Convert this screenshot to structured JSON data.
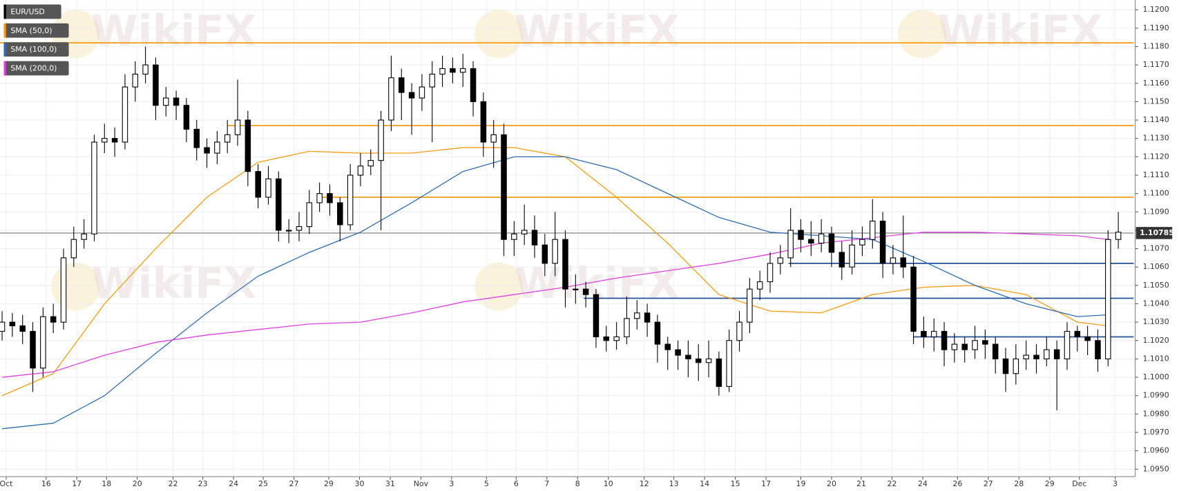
{
  "chart_data": {
    "type": "candlestick",
    "watermark": "WikiFX",
    "xlim": [
      -0.5,
      110.5
    ],
    "ylim": [
      1.095,
      1.1205
    ],
    "grid": true,
    "xticks": [
      {
        "value": 0.4,
        "label": "Oct"
      },
      {
        "value": 4.3,
        "label": "16"
      },
      {
        "value": 7.3,
        "label": "17"
      },
      {
        "value": 10.2,
        "label": "18"
      },
      {
        "value": 13.2,
        "label": "20"
      },
      {
        "value": 16.7,
        "label": "22"
      },
      {
        "value": 19.6,
        "label": "23"
      },
      {
        "value": 22.6,
        "label": "24"
      },
      {
        "value": 25.5,
        "label": "25"
      },
      {
        "value": 28.5,
        "label": "27"
      },
      {
        "value": 31.9,
        "label": "29"
      },
      {
        "value": 34.9,
        "label": "30"
      },
      {
        "value": 37.9,
        "label": "31"
      },
      {
        "value": 40.9,
        "label": "Nov"
      },
      {
        "value": 43.9,
        "label": "3"
      },
      {
        "value": 47.3,
        "label": "5"
      },
      {
        "value": 50.2,
        "label": "6"
      },
      {
        "value": 53.2,
        "label": "7"
      },
      {
        "value": 56.2,
        "label": "8"
      },
      {
        "value": 59.2,
        "label": "10"
      },
      {
        "value": 62.7,
        "label": "12"
      },
      {
        "value": 65.6,
        "label": "13"
      },
      {
        "value": 68.6,
        "label": "14"
      },
      {
        "value": 71.6,
        "label": "15"
      },
      {
        "value": 74.6,
        "label": "17"
      },
      {
        "value": 78.0,
        "label": "19"
      },
      {
        "value": 81.0,
        "label": "20"
      },
      {
        "value": 83.9,
        "label": "21"
      },
      {
        "value": 86.9,
        "label": "22"
      },
      {
        "value": 89.9,
        "label": "24"
      },
      {
        "value": 93.3,
        "label": "26"
      },
      {
        "value": 96.3,
        "label": "27"
      },
      {
        "value": 99.3,
        "label": "28"
      },
      {
        "value": 102.3,
        "label": "29"
      },
      {
        "value": 105.2,
        "label": "Dec"
      },
      {
        "value": 108.7,
        "label": "3"
      }
    ],
    "yticks": [
      {
        "value": 1.12,
        "label": "1.1200"
      },
      {
        "value": 1.119,
        "label": "1.1190"
      },
      {
        "value": 1.118,
        "label": "1.1180"
      },
      {
        "value": 1.117,
        "label": "1.1170"
      },
      {
        "value": 1.116,
        "label": "1.1160"
      },
      {
        "value": 1.115,
        "label": "1.1150"
      },
      {
        "value": 1.114,
        "label": "1.1140"
      },
      {
        "value": 1.113,
        "label": "1.1130"
      },
      {
        "value": 1.112,
        "label": "1.1120"
      },
      {
        "value": 1.111,
        "label": "1.1110"
      },
      {
        "value": 1.11,
        "label": "1.1100"
      },
      {
        "value": 1.109,
        "label": "1.1090"
      },
      {
        "value": 1.108,
        "label": "1.1080"
      },
      {
        "value": 1.107,
        "label": "1.1070"
      },
      {
        "value": 1.106,
        "label": "1.1060"
      },
      {
        "value": 1.105,
        "label": "1.1050"
      },
      {
        "value": 1.104,
        "label": "1.1040"
      },
      {
        "value": 1.103,
        "label": "1.1030"
      },
      {
        "value": 1.102,
        "label": "1.1020"
      },
      {
        "value": 1.101,
        "label": "1.1010"
      },
      {
        "value": 1.1,
        "label": "1.1000"
      },
      {
        "value": 1.099,
        "label": "1.0990"
      },
      {
        "value": 1.098,
        "label": "1.0980"
      },
      {
        "value": 1.097,
        "label": "1.0970"
      },
      {
        "value": 1.096,
        "label": "1.0960"
      },
      {
        "value": 1.095,
        "label": "1.0950"
      }
    ],
    "candles": {
      "name": "EUR/USD",
      "up_color": "#ffffff",
      "down_color": "#000000",
      "x": [
        0,
        1,
        2,
        3,
        4,
        5,
        6,
        7,
        8,
        9,
        10,
        11,
        12,
        13,
        14,
        15,
        16,
        17,
        18,
        19,
        20,
        21,
        22,
        23,
        24,
        25,
        26,
        27,
        28,
        29,
        30,
        31,
        32,
        33,
        34,
        35,
        36,
        37,
        38,
        39,
        40,
        41,
        42,
        43,
        44,
        45,
        46,
        47,
        48,
        49,
        50,
        51,
        52,
        53,
        54,
        55,
        56,
        57,
        58,
        59,
        60,
        61,
        62,
        63,
        64,
        65,
        66,
        67,
        68,
        69,
        70,
        71,
        72,
        73,
        74,
        75,
        76,
        77,
        78,
        79,
        80,
        81,
        82,
        83,
        84,
        85,
        86,
        87,
        88,
        89,
        90,
        91,
        92,
        93,
        94,
        95,
        96,
        97,
        98,
        99,
        100,
        101,
        102,
        103,
        104,
        105,
        106,
        107,
        108,
        109
      ],
      "open": [
        1.1025,
        1.103,
        1.1028,
        1.1025,
        1.1005,
        1.1033,
        1.103,
        1.1065,
        1.1075,
        1.1078,
        1.1128,
        1.113,
        1.1128,
        1.1158,
        1.1165,
        1.117,
        1.1148,
        1.1152,
        1.1148,
        1.1135,
        1.1125,
        1.1122,
        1.1128,
        1.1132,
        1.114,
        1.1112,
        1.1098,
        1.1108,
        1.108,
        1.108,
        1.1082,
        1.1095,
        1.11,
        1.1095,
        1.1083,
        1.111,
        1.1115,
        1.1118,
        1.114,
        1.1163,
        1.1155,
        1.1152,
        1.1158,
        1.1165,
        1.1168,
        1.1166,
        1.1168,
        1.115,
        1.1128,
        1.1132,
        1.1075,
        1.1078,
        1.108,
        1.1072,
        1.1062,
        1.1075,
        1.1048,
        1.1048,
        1.1045,
        1.1022,
        1.102,
        1.1022,
        1.1032,
        1.1035,
        1.103,
        1.1018,
        1.1015,
        1.1012,
        1.101,
        1.1008,
        1.101,
        1.0995,
        1.102,
        1.103,
        1.1048,
        1.1052,
        1.1062,
        1.1065,
        1.108,
        1.1075,
        1.1073,
        1.1078,
        1.1068,
        1.106,
        1.1072,
        1.1075,
        1.1085,
        1.1062,
        1.1065,
        1.106,
        1.1025,
        1.1022,
        1.1025,
        1.1015,
        1.1018,
        1.1015,
        1.102,
        1.1018,
        1.101,
        1.1002,
        1.101,
        1.1012,
        1.101,
        1.1015,
        1.101,
        1.1025,
        1.1022,
        1.102,
        1.101,
        1.1075
      ],
      "high": [
        1.1036,
        1.1035,
        1.1034,
        1.103,
        1.1038,
        1.104,
        1.107,
        1.1082,
        1.1086,
        1.1132,
        1.1138,
        1.1136,
        1.1165,
        1.1172,
        1.118,
        1.1174,
        1.1158,
        1.1156,
        1.1152,
        1.114,
        1.113,
        1.1134,
        1.114,
        1.1162,
        1.1145,
        1.1116,
        1.1115,
        1.1112,
        1.1086,
        1.109,
        1.1102,
        1.1106,
        1.1105,
        1.1098,
        1.1116,
        1.1122,
        1.1124,
        1.1145,
        1.1175,
        1.1168,
        1.116,
        1.1165,
        1.1172,
        1.1175,
        1.1174,
        1.1176,
        1.1172,
        1.1155,
        1.114,
        1.1138,
        1.1085,
        1.1094,
        1.1088,
        1.1078,
        1.109,
        1.108,
        1.1056,
        1.1052,
        1.1048,
        1.1028,
        1.103,
        1.1044,
        1.1042,
        1.104,
        1.1034,
        1.1022,
        1.102,
        1.102,
        1.1018,
        1.102,
        1.1014,
        1.1026,
        1.1036,
        1.1054,
        1.1058,
        1.1068,
        1.1072,
        1.1092,
        1.1086,
        1.1085,
        1.1086,
        1.1082,
        1.1074,
        1.108,
        1.1082,
        1.1097,
        1.109,
        1.1072,
        1.1088,
        1.1066,
        1.1033,
        1.1032,
        1.103,
        1.1024,
        1.1022,
        1.1028,
        1.1026,
        1.1022,
        1.1016,
        1.1018,
        1.102,
        1.1018,
        1.1022,
        1.102,
        1.103,
        1.1028,
        1.1028,
        1.1026,
        1.108,
        1.109
      ],
      "low": [
        1.102,
        1.1022,
        1.1018,
        1.0992,
        1.1,
        1.1024,
        1.1026,
        1.106,
        1.107,
        1.1074,
        1.1122,
        1.112,
        1.1124,
        1.115,
        1.116,
        1.114,
        1.1142,
        1.114,
        1.1128,
        1.1118,
        1.1114,
        1.1116,
        1.1122,
        1.1126,
        1.1104,
        1.1092,
        1.1094,
        1.1074,
        1.1073,
        1.1074,
        1.1078,
        1.109,
        1.1088,
        1.1074,
        1.108,
        1.1104,
        1.111,
        1.108,
        1.1134,
        1.114,
        1.1132,
        1.1145,
        1.1128,
        1.1158,
        1.116,
        1.1158,
        1.1142,
        1.112,
        1.1114,
        1.1066,
        1.1066,
        1.1072,
        1.1065,
        1.1055,
        1.1055,
        1.1038,
        1.104,
        1.1038,
        1.1016,
        1.1014,
        1.1015,
        1.1018,
        1.1026,
        1.1022,
        1.1008,
        1.1004,
        1.1004,
        1.1,
        1.0998,
        1.1,
        1.099,
        1.0992,
        1.1014,
        1.1024,
        1.1042,
        1.1046,
        1.1056,
        1.106,
        1.1068,
        1.1066,
        1.1068,
        1.106,
        1.1053,
        1.1056,
        1.1066,
        1.107,
        1.1054,
        1.1056,
        1.1054,
        1.1018,
        1.1016,
        1.1014,
        1.1006,
        1.1008,
        1.1008,
        1.101,
        1.101,
        1.1002,
        1.0992,
        1.0996,
        1.1004,
        1.1002,
        1.1006,
        1.0982,
        1.1004,
        1.1014,
        1.1012,
        1.1003,
        1.1006,
        1.107
      ],
      "close": [
        1.103,
        1.1028,
        1.1025,
        1.1005,
        1.1033,
        1.103,
        1.1065,
        1.1075,
        1.1078,
        1.1128,
        1.113,
        1.1128,
        1.1158,
        1.1165,
        1.117,
        1.1148,
        1.1152,
        1.1148,
        1.1135,
        1.1125,
        1.1122,
        1.1128,
        1.1132,
        1.114,
        1.1112,
        1.1098,
        1.1108,
        1.108,
        1.108,
        1.1082,
        1.1095,
        1.11,
        1.1095,
        1.1083,
        1.111,
        1.1115,
        1.1118,
        1.114,
        1.1163,
        1.1155,
        1.1152,
        1.1158,
        1.1165,
        1.1168,
        1.1166,
        1.1168,
        1.115,
        1.1128,
        1.1132,
        1.1075,
        1.1078,
        1.108,
        1.1072,
        1.1062,
        1.1075,
        1.1048,
        1.1048,
        1.1045,
        1.1022,
        1.102,
        1.1022,
        1.1032,
        1.1035,
        1.103,
        1.1018,
        1.1015,
        1.1012,
        1.101,
        1.1008,
        1.101,
        1.0995,
        1.102,
        1.103,
        1.1048,
        1.1052,
        1.1062,
        1.1065,
        1.108,
        1.1075,
        1.1073,
        1.1078,
        1.1068,
        1.106,
        1.1072,
        1.1075,
        1.1085,
        1.1062,
        1.1065,
        1.106,
        1.1025,
        1.1022,
        1.1025,
        1.1015,
        1.1018,
        1.1015,
        1.102,
        1.1018,
        1.101,
        1.1002,
        1.101,
        1.1012,
        1.101,
        1.1015,
        1.101,
        1.1025,
        1.1022,
        1.102,
        1.101,
        1.1075,
        1.1079
      ]
    },
    "series": [
      {
        "name": "SMA (50,0)",
        "color": "#f39c12",
        "x": [
          0,
          5,
          10,
          15,
          20,
          25,
          30,
          35,
          40,
          45,
          50,
          55,
          60,
          65,
          70,
          75,
          80,
          85,
          90,
          95,
          100,
          105,
          108
        ],
        "values": [
          1.099,
          1.1002,
          1.104,
          1.107,
          1.1098,
          1.1117,
          1.1123,
          1.1122,
          1.1122,
          1.1125,
          1.1125,
          1.112,
          1.1098,
          1.1073,
          1.1045,
          1.1036,
          1.1035,
          1.1045,
          1.1049,
          1.105,
          1.1045,
          1.103,
          1.1028
        ]
      },
      {
        "name": "SMA (100,0)",
        "color": "#2e6db4",
        "x": [
          0,
          5,
          10,
          15,
          20,
          25,
          30,
          35,
          40,
          45,
          50,
          55,
          60,
          65,
          70,
          75,
          80,
          85,
          90,
          95,
          100,
          105,
          108
        ],
        "values": [
          1.0972,
          1.0975,
          1.099,
          1.1013,
          1.1035,
          1.1055,
          1.1068,
          1.1079,
          1.1095,
          1.1112,
          1.112,
          1.112,
          1.1113,
          1.11,
          1.1087,
          1.1079,
          1.1077,
          1.1075,
          1.1063,
          1.105,
          1.104,
          1.1033,
          1.1034
        ]
      },
      {
        "name": "SMA (200,0)",
        "color": "#e040e0",
        "x": [
          0,
          5,
          10,
          15,
          20,
          25,
          30,
          35,
          40,
          45,
          50,
          55,
          60,
          65,
          70,
          75,
          80,
          85,
          90,
          95,
          100,
          105,
          108
        ],
        "values": [
          1.1,
          1.1003,
          1.1012,
          1.1019,
          1.1023,
          1.1026,
          1.1029,
          1.103,
          1.1035,
          1.1041,
          1.1045,
          1.1049,
          1.1054,
          1.1058,
          1.1062,
          1.1067,
          1.1073,
          1.1076,
          1.1079,
          1.1079,
          1.1078,
          1.1077,
          1.1075
        ]
      }
    ],
    "levels": [
      {
        "value": 1.1182,
        "from": -0.5,
        "color": "#f39c12"
      },
      {
        "value": 1.1137,
        "from": 22,
        "color": "#f39c12"
      },
      {
        "value": 1.1098,
        "from": 31,
        "color": "#f39c12"
      },
      {
        "value": 1.1062,
        "from": 76.8,
        "color": "#1f4e9a"
      },
      {
        "value": 1.1043,
        "from": 56.8,
        "color": "#1f4e9a"
      },
      {
        "value": 1.1022,
        "from": 89,
        "color": "#1f4e9a"
      }
    ],
    "last_price": 1.10785
  }
}
